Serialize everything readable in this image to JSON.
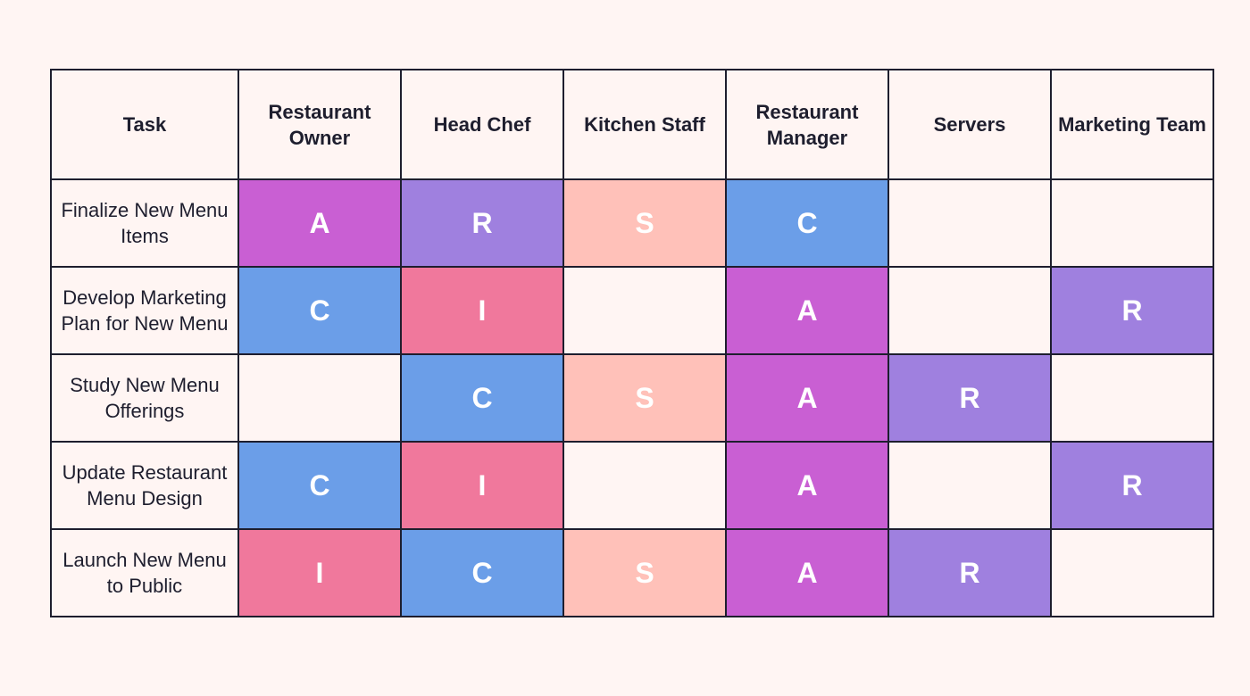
{
  "table": {
    "header": [
      "Task",
      "Restaurant Owner",
      "Head Chef",
      "Kitchen Staff",
      "Restaurant Manager",
      "Servers",
      "Marketing Team"
    ],
    "rows": [
      [
        "Finalize New Menu Items",
        "A",
        "R",
        "S",
        "C",
        null,
        null
      ],
      [
        "Develop Marketing Plan for New Menu",
        "C",
        "I",
        null,
        "A",
        null,
        "R"
      ],
      [
        "Study New Menu Offerings",
        null,
        "C",
        "S",
        "A",
        "R",
        null
      ],
      [
        "Update Restaurant Menu Design",
        "C",
        "I",
        null,
        "A",
        null,
        "R"
      ],
      [
        "Launch New Menu to Public",
        "I",
        "C",
        "S",
        "A",
        "R",
        null
      ]
    ],
    "colors": {
      "A": "#c95fd3",
      "R": "#9f80df",
      "S": "#ffc1b9",
      "C": "#6b9ee8",
      "I": "#f0789c"
    }
  }
}
